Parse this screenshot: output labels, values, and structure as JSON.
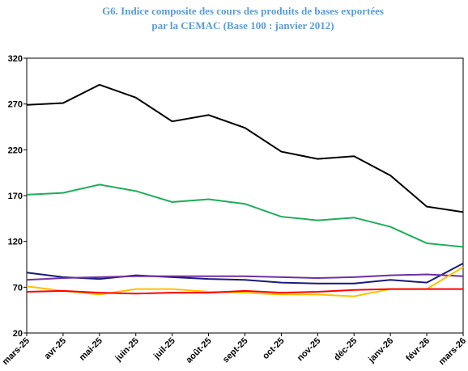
{
  "chart_data": {
    "type": "line",
    "title": [
      "G6. Indice composite des cours des produits de bases exportées",
      "par la CEMAC (Base 100 : janvier 2012)"
    ],
    "categories": [
      "mars-25",
      "avr-25",
      "mai-25",
      "juin-25",
      "juil-25",
      "août-25",
      "sept-25",
      "oct-25",
      "nov-25",
      "déc-25",
      "janv-26",
      "févr-26",
      "mars-26"
    ],
    "series": [
      {
        "color": "#000000",
        "values": [
          269,
          271,
          291,
          277,
          251,
          258,
          244,
          218,
          210,
          213,
          192,
          158,
          152
        ]
      },
      {
        "color": "#1fad5a",
        "values": [
          171,
          173,
          182,
          175,
          163,
          166,
          161,
          147,
          143,
          146,
          136,
          118,
          114
        ]
      },
      {
        "color": "#1a1a7a",
        "values": [
          86,
          81,
          79,
          83,
          81,
          79,
          78,
          75,
          74,
          74,
          78,
          75,
          96
        ]
      },
      {
        "color": "#7030a0",
        "values": [
          78,
          80,
          81,
          82,
          82,
          82,
          82,
          81,
          80,
          81,
          83,
          84,
          82
        ]
      },
      {
        "color": "#ffc000",
        "values": [
          71,
          66,
          62,
          68,
          68,
          65,
          64,
          62,
          62,
          60,
          68,
          68,
          92
        ]
      },
      {
        "color": "#ff0000",
        "values": [
          65,
          66,
          64,
          63,
          64,
          64,
          66,
          64,
          65,
          67,
          68,
          68,
          68
        ]
      }
    ],
    "ylim": [
      20,
      320
    ],
    "yticks": [
      20,
      70,
      120,
      170,
      220,
      270,
      320
    ]
  }
}
